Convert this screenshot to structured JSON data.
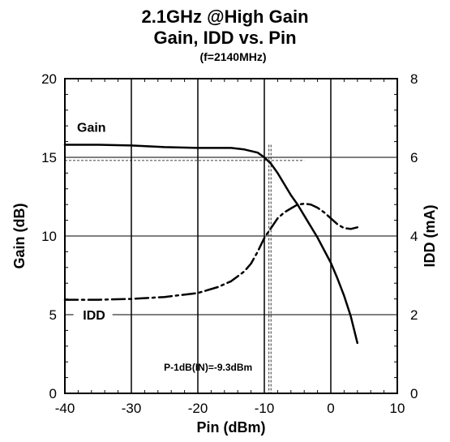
{
  "chart_data": {
    "type": "line",
    "title": "2.1GHz @High Gain",
    "subtitle": "Gain, IDD vs. Pin",
    "condition": "(f=2140MHz)",
    "xlabel": "Pin (dBm)",
    "ylabel": "Gain (dB)",
    "y2label": "IDD (mA)",
    "xlim": [
      -40,
      10
    ],
    "ylim": [
      0,
      20
    ],
    "y2lim": [
      0,
      8
    ],
    "xticks": [
      "-40",
      "-30",
      "-20",
      "-10",
      "0",
      "10"
    ],
    "yticks": [
      "0",
      "5",
      "10",
      "15",
      "20"
    ],
    "y2ticks": [
      "0",
      "2",
      "4",
      "6",
      "8"
    ],
    "grid": true,
    "series": [
      {
        "name": "Gain",
        "axis": "left",
        "style": "solid",
        "x": [
          -40,
          -35,
          -30,
          -25,
          -20,
          -15,
          -13,
          -11,
          -10,
          -9,
          -8,
          -7,
          -6,
          -5,
          -4,
          -3,
          -2,
          -1,
          0,
          1,
          2,
          3,
          4
        ],
        "y": [
          15.8,
          15.8,
          15.75,
          15.65,
          15.6,
          15.6,
          15.5,
          15.3,
          15.0,
          14.6,
          14.0,
          13.3,
          12.6,
          12.0,
          11.3,
          10.6,
          9.9,
          9.1,
          8.3,
          7.3,
          6.2,
          4.9,
          3.2
        ]
      },
      {
        "name": "IDD",
        "axis": "right",
        "style": "dashdot",
        "x": [
          -40,
          -35,
          -30,
          -25,
          -20,
          -17,
          -15,
          -13,
          -12,
          -11,
          -10,
          -9,
          -8,
          -7,
          -6,
          -5,
          -4,
          -3,
          -2,
          -1,
          0,
          1,
          2,
          3,
          4
        ],
        "y": [
          2.38,
          2.38,
          2.4,
          2.45,
          2.55,
          2.7,
          2.85,
          3.1,
          3.3,
          3.6,
          3.95,
          4.2,
          4.45,
          4.6,
          4.7,
          4.8,
          4.82,
          4.8,
          4.72,
          4.6,
          4.45,
          4.3,
          4.2,
          4.18,
          4.22
        ]
      }
    ],
    "annotation": "P-1dB(IN)=-9.3dBm",
    "p1db_x": -9.3,
    "p1db_gain": 14.8,
    "unmarked_vertical_line_x": -9.0
  }
}
